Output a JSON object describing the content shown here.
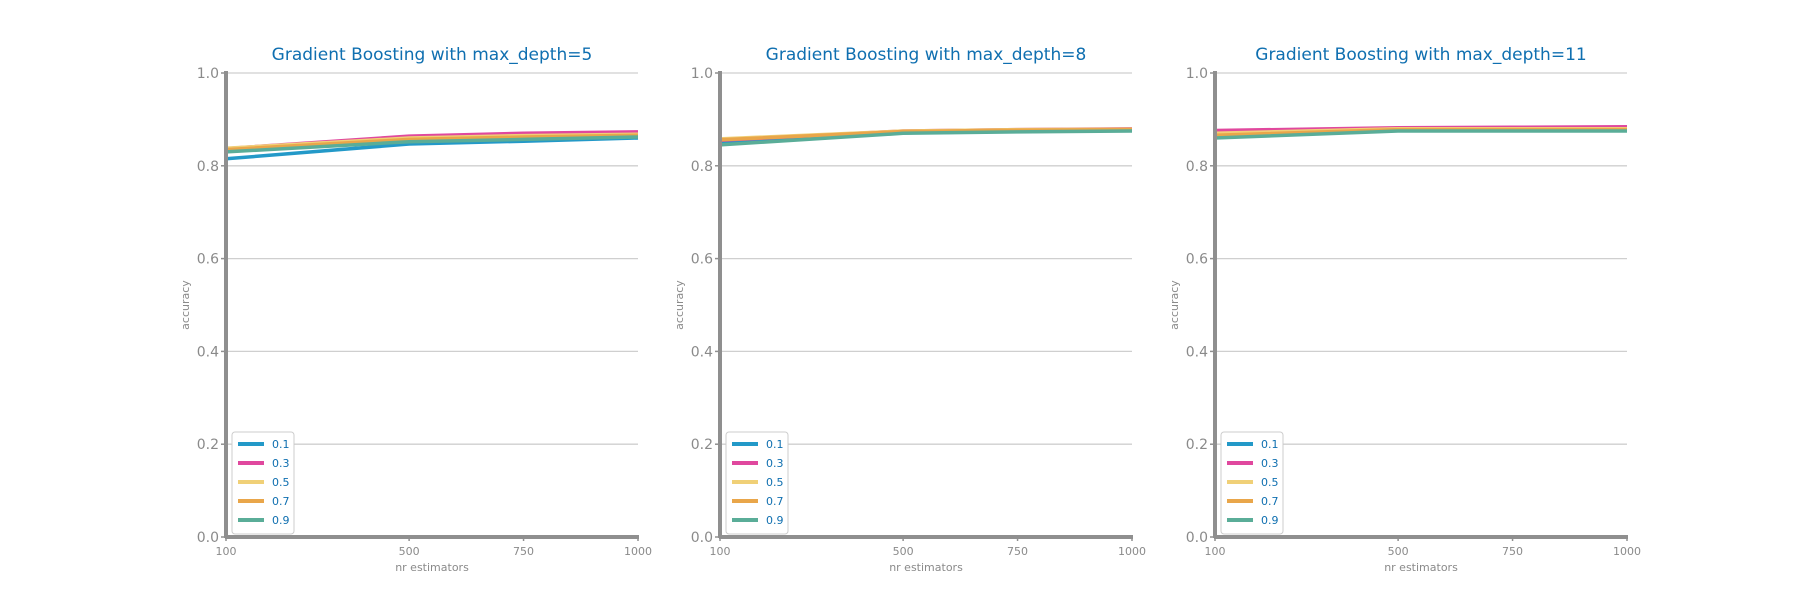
{
  "chart_data": [
    {
      "type": "line",
      "title": "Gradient Boosting with max_depth=5",
      "xlabel": "nr estimators",
      "ylabel": "accuracy",
      "x": [
        100,
        500,
        750,
        1000
      ],
      "xticks": [
        "100",
        "500",
        "750",
        "1000"
      ],
      "yticks": [
        "0.0",
        "0.2",
        "0.4",
        "0.6",
        "0.8",
        "1.0"
      ],
      "xlim": [
        100,
        1000
      ],
      "ylim": [
        0,
        1
      ],
      "grid": "horizontal",
      "legend_position": "lower-left",
      "series": [
        {
          "name": "0.1",
          "color": "#2399c8",
          "values": [
            0.815,
            0.847,
            0.853,
            0.86
          ]
        },
        {
          "name": "0.3",
          "color": "#e0489e",
          "values": [
            0.837,
            0.864,
            0.87,
            0.873
          ]
        },
        {
          "name": "0.5",
          "color": "#f0d077",
          "values": [
            0.838,
            0.86,
            0.865,
            0.868
          ]
        },
        {
          "name": "0.7",
          "color": "#e9a64a",
          "values": [
            0.835,
            0.857,
            0.862,
            0.866
          ]
        },
        {
          "name": "0.9",
          "color": "#5aad98",
          "values": [
            0.83,
            0.852,
            0.857,
            0.862
          ]
        }
      ]
    },
    {
      "type": "line",
      "title": "Gradient Boosting with max_depth=8",
      "xlabel": "nr estimators",
      "ylabel": "accuracy",
      "x": [
        100,
        500,
        750,
        1000
      ],
      "xticks": [
        "100",
        "500",
        "750",
        "1000"
      ],
      "yticks": [
        "0.0",
        "0.2",
        "0.4",
        "0.6",
        "0.8",
        "1.0"
      ],
      "xlim": [
        100,
        1000
      ],
      "ylim": [
        0,
        1
      ],
      "grid": "horizontal",
      "legend_position": "lower-left",
      "series": [
        {
          "name": "0.1",
          "color": "#2399c8",
          "values": [
            0.85,
            0.871,
            0.874,
            0.877
          ]
        },
        {
          "name": "0.3",
          "color": "#e0489e",
          "values": [
            0.855,
            0.875,
            0.878,
            0.88
          ]
        },
        {
          "name": "0.5",
          "color": "#f0d077",
          "values": [
            0.858,
            0.875,
            0.878,
            0.879
          ]
        },
        {
          "name": "0.7",
          "color": "#e9a64a",
          "values": [
            0.856,
            0.874,
            0.877,
            0.878
          ]
        },
        {
          "name": "0.9",
          "color": "#5aad98",
          "values": [
            0.845,
            0.87,
            0.873,
            0.875
          ]
        }
      ]
    },
    {
      "type": "line",
      "title": "Gradient Boosting with max_depth=11",
      "xlabel": "nr estimators",
      "ylabel": "accuracy",
      "x": [
        100,
        500,
        750,
        1000
      ],
      "xticks": [
        "100",
        "500",
        "750",
        "1000"
      ],
      "yticks": [
        "0.0",
        "0.2",
        "0.4",
        "0.6",
        "0.8",
        "1.0"
      ],
      "xlim": [
        100,
        1000
      ],
      "ylim": [
        0,
        1
      ],
      "grid": "horizontal",
      "legend_position": "lower-left",
      "series": [
        {
          "name": "0.1",
          "color": "#2399c8",
          "values": [
            0.862,
            0.876,
            0.878,
            0.879
          ]
        },
        {
          "name": "0.3",
          "color": "#e0489e",
          "values": [
            0.876,
            0.882,
            0.883,
            0.884
          ]
        },
        {
          "name": "0.5",
          "color": "#f0d077",
          "values": [
            0.87,
            0.88,
            0.88,
            0.88
          ]
        },
        {
          "name": "0.7",
          "color": "#e9a64a",
          "values": [
            0.866,
            0.878,
            0.878,
            0.878
          ]
        },
        {
          "name": "0.9",
          "color": "#5aad98",
          "values": [
            0.86,
            0.875,
            0.875,
            0.875
          ]
        }
      ]
    }
  ]
}
